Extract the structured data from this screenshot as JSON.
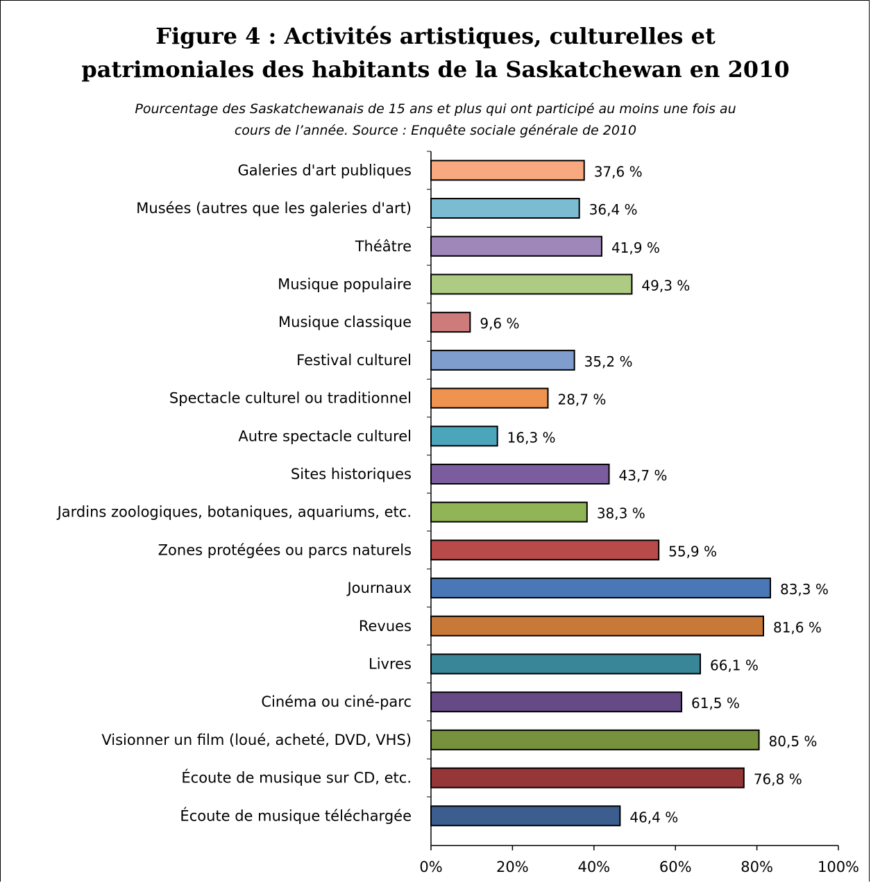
{
  "chart_data": {
    "type": "bar",
    "orientation": "horizontal",
    "title_line1": "Figure 4 : Activités artistiques, culturelles et",
    "title_line2": "patrimoniales des  habitants de la Saskatchewan en 2010",
    "subtitle_line1": "Pourcentage des Saskatchewanais de 15 ans et plus qui ont participé au moins une fois au",
    "subtitle_line2": "cours de l’année. Source : Enquête sociale générale de 2010",
    "categories": [
      "Galeries d'art publiques",
      "Musées (autres que les galeries d'art)",
      "Théâtre",
      "Musique populaire",
      "Musique classique",
      "Festival culturel",
      "Spectacle culturel ou traditionnel",
      "Autre spectacle culturel",
      "Sites historiques",
      "Jardins zoologiques, botaniques, aquariums, etc.",
      "Zones protégées ou parcs naturels",
      "Journaux",
      "Revues",
      "Livres",
      "Cinéma ou ciné-parc",
      "Visionner un film (loué, acheté, DVD, VHS)",
      "Écoute de musique sur CD, etc.",
      "Écoute de musique téléchargée"
    ],
    "values": [
      37.6,
      36.4,
      41.9,
      49.3,
      9.6,
      35.2,
      28.7,
      16.3,
      43.7,
      38.3,
      55.9,
      83.3,
      81.6,
      66.1,
      61.5,
      80.5,
      76.8,
      46.4
    ],
    "value_labels": [
      "37,6 %",
      "36,4 %",
      "41,9 %",
      "49,3 %",
      "9,6 %",
      "35,2 %",
      "28,7 %",
      "16,3 %",
      "43,7 %",
      "38,3 %",
      "55,9 %",
      "83,3 %",
      "81,6 %",
      "66,1 %",
      "61,5 %",
      "80,5 %",
      "76,8 %",
      "46,4 %"
    ],
    "colors": [
      "#F9A97F",
      "#7BBCD3",
      "#9F88B9",
      "#ADCB83",
      "#CD7B7B",
      "#7F9DCD",
      "#EE9350",
      "#4BA6BC",
      "#7B5D9F",
      "#91B556",
      "#B94A4A",
      "#4A77B5",
      "#C97937",
      "#3A8699",
      "#654A85",
      "#76923C",
      "#953737",
      "#3B5E8F"
    ],
    "xlim": [
      0,
      100
    ],
    "xticks": [
      "0%",
      "20%",
      "40%",
      "60%",
      "80%",
      "100%"
    ],
    "grid": false
  }
}
